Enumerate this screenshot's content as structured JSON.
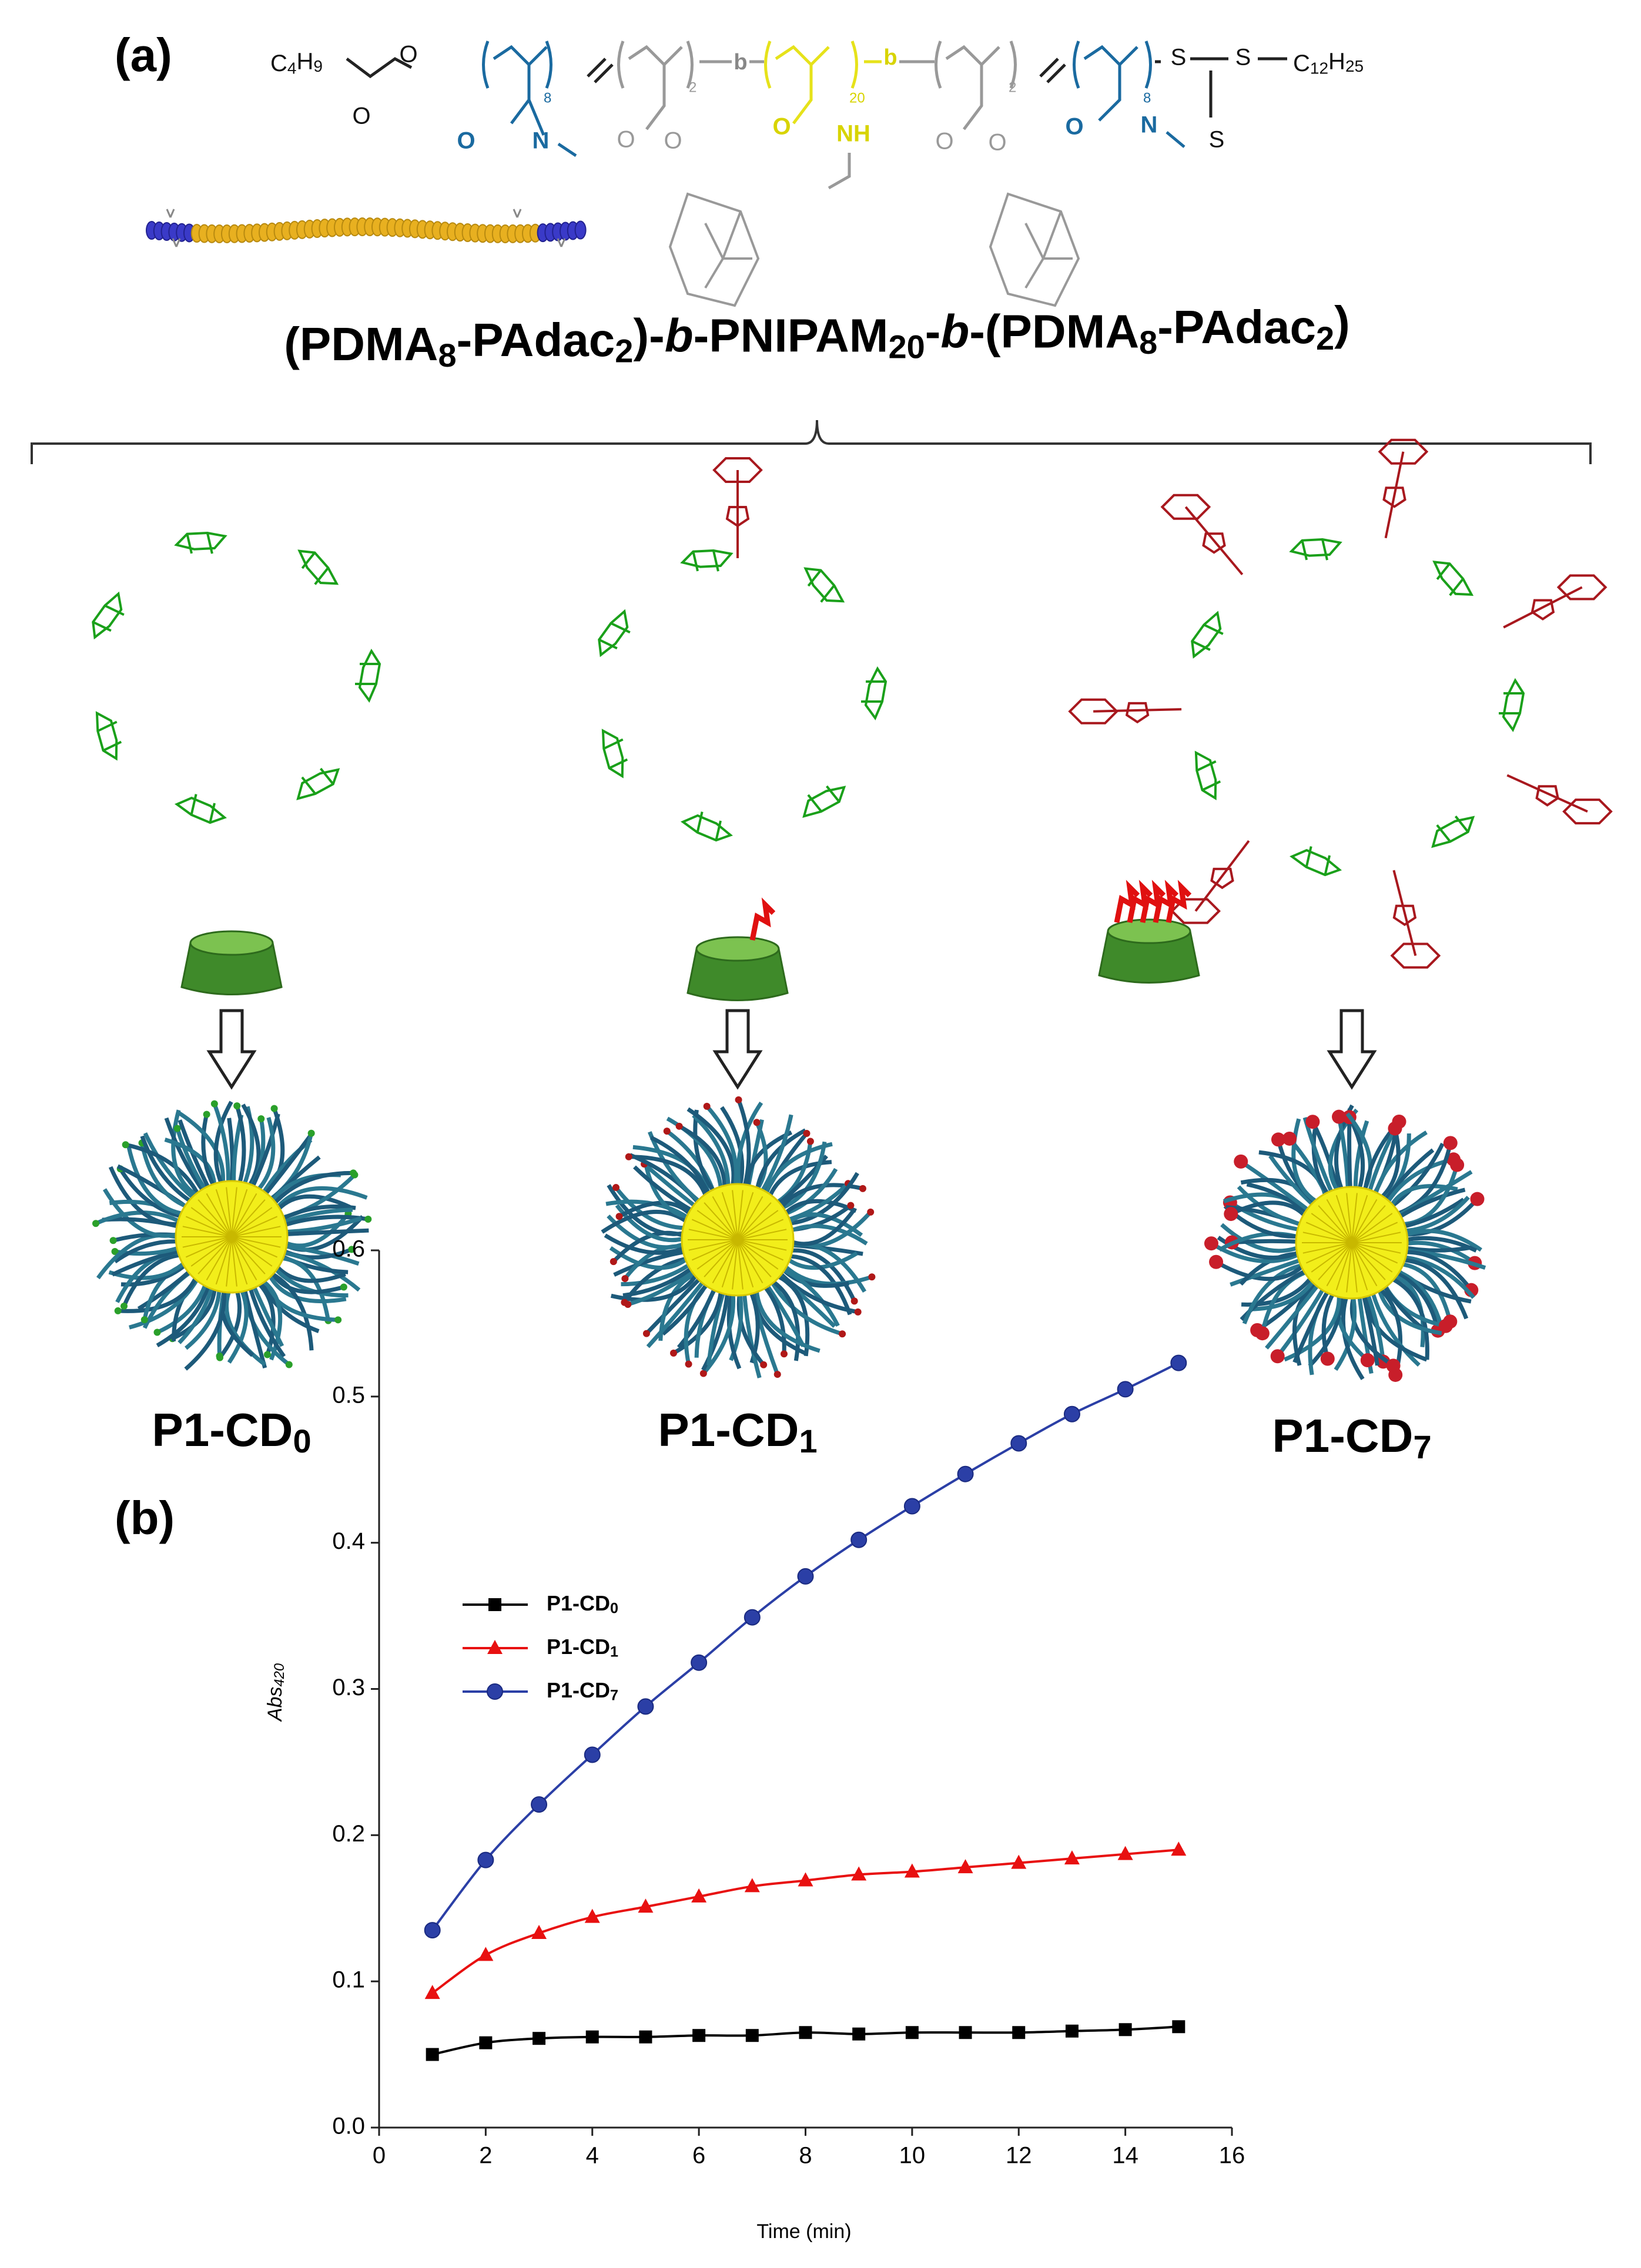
{
  "panel_a": {
    "label": "(a)",
    "polymer_name": "(PDMA8-PAdac2)-b-PNIPAM20-b-(PDMA8-PAdac2)",
    "structure": {
      "end_left": "C4H9",
      "end_right": "C12H25",
      "repeats": [
        "8",
        "2",
        "20",
        "2",
        "8"
      ],
      "links": [
        "b",
        "b"
      ],
      "atoms": [
        "O",
        "O",
        "O",
        "N",
        "O",
        "O",
        "O",
        "NH",
        "O",
        "O",
        "O",
        "N",
        "S",
        "S",
        "S"
      ]
    },
    "conjugates": [
      "P1-CD0",
      "P1-CD1",
      "P1-CD7"
    ]
  },
  "chart_data": {
    "type": "line",
    "label": "(b)",
    "x_label": "Time (min)",
    "y_label": "Abs420",
    "x": [
      1,
      2,
      3,
      4,
      5,
      6,
      7,
      8,
      9,
      10,
      11,
      12,
      13,
      14,
      15
    ],
    "series": [
      {
        "name": "P1-CD0",
        "color": "#000000",
        "marker": "square",
        "values": [
          0.05,
          0.058,
          0.061,
          0.062,
          0.062,
          0.063,
          0.063,
          0.065,
          0.064,
          0.065,
          0.065,
          0.065,
          0.066,
          0.067,
          0.069
        ]
      },
      {
        "name": "P1-CD1",
        "color": "#e81010",
        "marker": "triangle",
        "values": [
          0.092,
          0.118,
          0.133,
          0.144,
          0.151,
          0.158,
          0.165,
          0.169,
          0.173,
          0.175,
          0.178,
          0.181,
          0.184,
          0.187,
          0.19
        ]
      },
      {
        "name": "P1-CD7",
        "color": "#2b3fa6",
        "marker": "circle",
        "values": [
          0.135,
          0.183,
          0.221,
          0.255,
          0.288,
          0.318,
          0.349,
          0.377,
          0.402,
          0.425,
          0.447,
          0.468,
          0.488,
          0.505,
          0.523
        ]
      }
    ],
    "xlim": [
      0,
      16
    ],
    "xticks": [
      0,
      2,
      4,
      6,
      8,
      10,
      12,
      14,
      16
    ],
    "ylim": [
      0,
      0.6
    ],
    "yticks": [
      {
        "value": 0,
        "label": "0.0"
      },
      0.1,
      0.2,
      0.3,
      0.4,
      0.5,
      0.6
    ],
    "legend": "upper left"
  }
}
